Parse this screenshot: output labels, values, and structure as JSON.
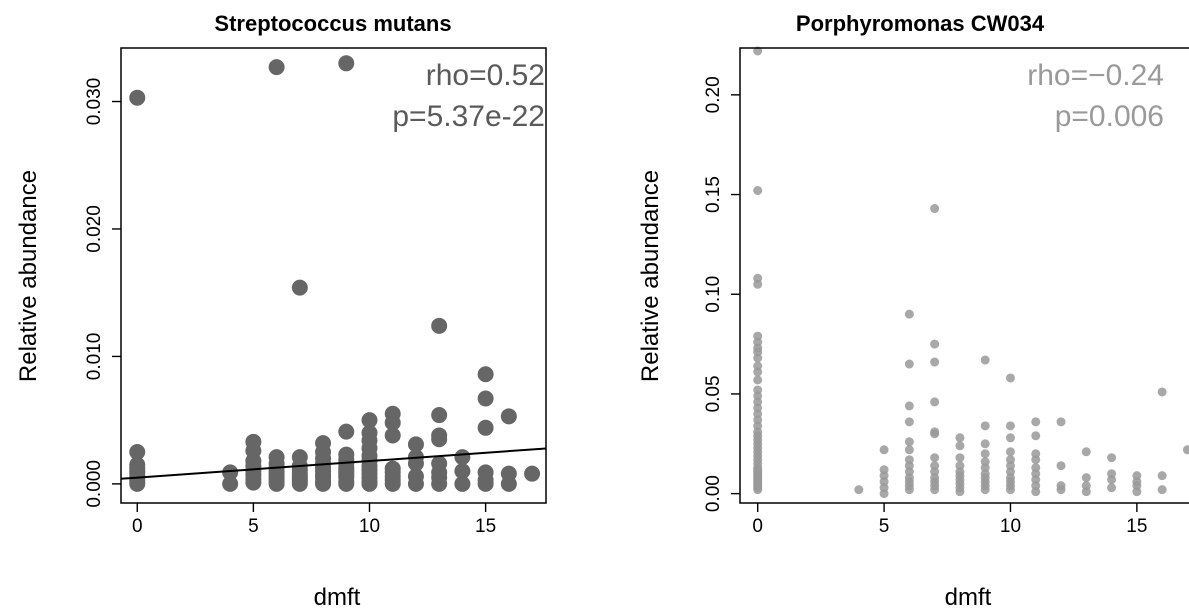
{
  "chart_data": [
    {
      "type": "scatter",
      "title": "Streptococcus mutans",
      "xlabel": "dmft",
      "ylabel": "Relative abundance",
      "xlim": [
        -0.7,
        17.6
      ],
      "ylim": [
        -0.0015,
        0.0342
      ],
      "xticks": [
        0,
        5,
        10,
        15
      ],
      "yticks": [
        0.0,
        0.01,
        0.02,
        0.03
      ],
      "xtick_labels": [
        "0",
        "5",
        "10",
        "15"
      ],
      "ytick_labels": [
        "0.000",
        "0.010",
        "0.020",
        "0.030"
      ],
      "annotations": [
        "rho=0.52",
        "p=5.37e-22"
      ],
      "grid": false,
      "point_color": "#666666",
      "stat_color": "#5a5a5a",
      "trendline": {
        "x": [
          -0.7,
          17.6
        ],
        "y": [
          0.0004,
          0.00278
        ]
      },
      "points": {
        "x": [
          0,
          0,
          0,
          0,
          0,
          0,
          0,
          0,
          0,
          0,
          4,
          4,
          5,
          5,
          5,
          5,
          5,
          5,
          5,
          5,
          6,
          6,
          6,
          6,
          6,
          6,
          6,
          6,
          6,
          6,
          7,
          7,
          7,
          7,
          7,
          7,
          7,
          7,
          7,
          8,
          8,
          8,
          8,
          8,
          8,
          8,
          8,
          8,
          8,
          9,
          9,
          9,
          9,
          9,
          9,
          9,
          9,
          9,
          9,
          9,
          9,
          10,
          10,
          10,
          10,
          10,
          10,
          10,
          10,
          10,
          10,
          10,
          10,
          11,
          11,
          11,
          11,
          11,
          11,
          11,
          11,
          12,
          12,
          12,
          12,
          12,
          13,
          13,
          13,
          13,
          13,
          13,
          13,
          13,
          14,
          14,
          14,
          15,
          15,
          15,
          15,
          15,
          15,
          16,
          16,
          16,
          17
        ],
        "y": [
          0.0303,
          0.0025,
          0.0015,
          0.0012,
          0.001,
          0.0008,
          0.0006,
          0.0004,
          0.0002,
          0.0,
          0.0009,
          0.0,
          0.0033,
          0.0026,
          0.0018,
          0.0014,
          0.001,
          0.0007,
          0.0004,
          0.0001,
          0.0327,
          0.0021,
          0.0016,
          0.0013,
          0.001,
          0.0008,
          0.0006,
          0.0004,
          0.0002,
          0.0,
          0.0154,
          0.0021,
          0.0014,
          0.0011,
          0.0008,
          0.0006,
          0.0004,
          0.0002,
          0.0,
          0.0032,
          0.0025,
          0.002,
          0.0016,
          0.0013,
          0.001,
          0.0007,
          0.0005,
          0.0002,
          0.0,
          0.033,
          0.0041,
          0.0023,
          0.0019,
          0.0016,
          0.0013,
          0.0011,
          0.0009,
          0.0007,
          0.0005,
          0.0002,
          0.0,
          0.005,
          0.004,
          0.0034,
          0.0028,
          0.0022,
          0.0018,
          0.0014,
          0.0011,
          0.0008,
          0.0005,
          0.0002,
          0.0,
          0.0055,
          0.0048,
          0.0038,
          0.0012,
          0.0009,
          0.0006,
          0.0003,
          0.0,
          0.0031,
          0.0021,
          0.0016,
          0.0006,
          0.0,
          0.0124,
          0.0054,
          0.0038,
          0.0035,
          0.0016,
          0.0009,
          0.0005,
          0.0,
          0.0021,
          0.001,
          0.0,
          0.0086,
          0.0067,
          0.0044,
          0.0009,
          0.0003,
          0.0,
          0.0053,
          0.0008,
          0.0,
          0.0008
        ]
      }
    },
    {
      "type": "scatter",
      "title": "Porphyromonas CW034",
      "xlabel": "dmft",
      "ylabel": "Relative abundance",
      "xlim": [
        -0.7,
        17.3
      ],
      "ylim": [
        -0.0047,
        0.2235
      ],
      "xticks": [
        0,
        5,
        10,
        15
      ],
      "yticks": [
        0.0,
        0.05,
        0.1,
        0.15,
        0.2
      ],
      "xtick_labels": [
        "0",
        "5",
        "10",
        "15"
      ],
      "ytick_labels": [
        "0.00",
        "0.05",
        "0.10",
        "0.15",
        "0.20"
      ],
      "annotations": [
        "rho=−0.24",
        "p=0.006"
      ],
      "grid": false,
      "point_color": "#999999",
      "stat_color": "#9a9a9a",
      "points": {
        "x": [
          0,
          0,
          0,
          0,
          0,
          0,
          0,
          0,
          0,
          0,
          0,
          0,
          0,
          0,
          0,
          0,
          0,
          0,
          0,
          0,
          0,
          0,
          0,
          0,
          0,
          0,
          0,
          0,
          0,
          0,
          0,
          0,
          0,
          0,
          0,
          0,
          0,
          0,
          0,
          0,
          4,
          5,
          5,
          5,
          5,
          5,
          5,
          6,
          6,
          6,
          6,
          6,
          6,
          6,
          6,
          6,
          6,
          6,
          6,
          6,
          7,
          7,
          7,
          7,
          7,
          7,
          7,
          7,
          7,
          7,
          7,
          7,
          7,
          8,
          8,
          8,
          8,
          8,
          8,
          8,
          8,
          8,
          8,
          9,
          9,
          9,
          9,
          9,
          9,
          9,
          9,
          9,
          9,
          9,
          10,
          10,
          10,
          10,
          10,
          10,
          10,
          10,
          10,
          10,
          10,
          11,
          11,
          11,
          11,
          11,
          11,
          11,
          11,
          11,
          12,
          12,
          12,
          12,
          13,
          13,
          13,
          13,
          14,
          14,
          14,
          14,
          15,
          15,
          15,
          15,
          16,
          16,
          16,
          17
        ],
        "y": [
          0.222,
          0.152,
          0.108,
          0.105,
          0.079,
          0.076,
          0.073,
          0.071,
          0.068,
          0.064,
          0.061,
          0.057,
          0.052,
          0.049,
          0.046,
          0.043,
          0.04,
          0.037,
          0.034,
          0.031,
          0.029,
          0.027,
          0.025,
          0.023,
          0.021,
          0.019,
          0.017,
          0.015,
          0.013,
          0.012,
          0.011,
          0.01,
          0.009,
          0.008,
          0.007,
          0.006,
          0.005,
          0.004,
          0.003,
          0.002,
          0.002,
          0.022,
          0.012,
          0.009,
          0.006,
          0.003,
          0.0,
          0.09,
          0.065,
          0.044,
          0.036,
          0.026,
          0.022,
          0.017,
          0.014,
          0.011,
          0.008,
          0.006,
          0.004,
          0.002,
          0.143,
          0.075,
          0.066,
          0.046,
          0.031,
          0.03,
          0.018,
          0.014,
          0.011,
          0.008,
          0.006,
          0.004,
          0.002,
          0.028,
          0.024,
          0.018,
          0.014,
          0.011,
          0.009,
          0.007,
          0.005,
          0.003,
          0.001,
          0.067,
          0.034,
          0.025,
          0.02,
          0.016,
          0.013,
          0.01,
          0.008,
          0.006,
          0.004,
          0.002,
          0.058,
          0.034,
          0.028,
          0.021,
          0.017,
          0.014,
          0.011,
          0.008,
          0.006,
          0.004,
          0.002,
          0.036,
          0.029,
          0.02,
          0.017,
          0.013,
          0.01,
          0.007,
          0.004,
          0.001,
          0.036,
          0.014,
          0.004,
          0.002,
          0.021,
          0.008,
          0.004,
          0.001,
          0.018,
          0.01,
          0.007,
          0.003,
          0.009,
          0.006,
          0.004,
          0.001,
          0.051,
          0.009,
          0.002,
          0.022
        ]
      }
    }
  ]
}
